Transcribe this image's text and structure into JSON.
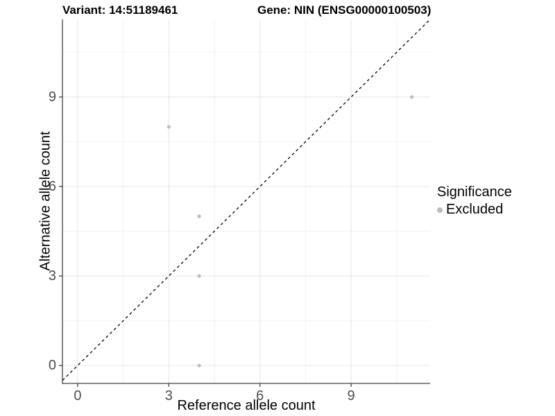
{
  "figure": {
    "title_left": "Variant: 14:51189461",
    "title_right": "Gene: NIN (ENSG00000100503)"
  },
  "chart_data": {
    "type": "scatter",
    "xlabel": "Reference allele count",
    "ylabel": "Alternative allele count",
    "xlim": [
      -0.5,
      11.6
    ],
    "ylim": [
      -0.6,
      11.6
    ],
    "x_ticks": [
      0,
      3,
      6,
      9
    ],
    "y_ticks": [
      0,
      3,
      6,
      9
    ],
    "x_minor_ticks": [
      1.5,
      4.5,
      7.5,
      10.5
    ],
    "y_minor_ticks": [
      1.5,
      4.5,
      7.5,
      10.5
    ],
    "grid": true,
    "series": [
      {
        "name": "Excluded",
        "color": "#bdbdbd",
        "points": [
          {
            "x": 3,
            "y": 8
          },
          {
            "x": 4,
            "y": 5
          },
          {
            "x": 4,
            "y": 3
          },
          {
            "x": 4,
            "y": 0
          },
          {
            "x": 11,
            "y": 9
          }
        ]
      }
    ],
    "reference_line": {
      "type": "identity",
      "style": "dashed",
      "color": "#000000",
      "from": -0.5,
      "to": 11.6
    },
    "legend": {
      "title": "Significance",
      "position": "right",
      "items": [
        {
          "label": "Excluded",
          "color": "#bdbdbd"
        }
      ]
    }
  },
  "colors": {
    "background": "#ffffff",
    "axis": "#404040",
    "grid_major": "#e4e4e4",
    "grid_minor": "#f2f2f2",
    "tick_label": "#4d4d4d"
  }
}
